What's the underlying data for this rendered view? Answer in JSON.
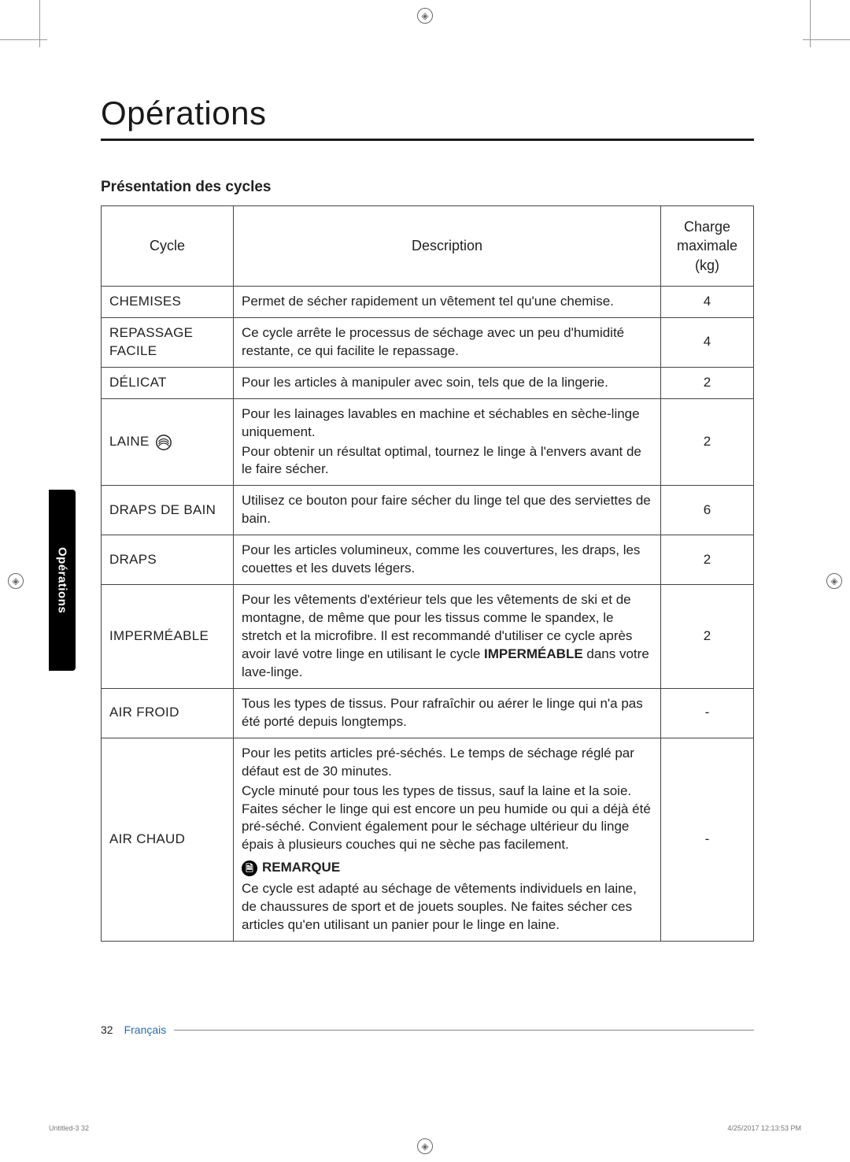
{
  "page": {
    "title": "Opérations",
    "subtitle": "Présentation des cycles",
    "side_tab": "Opérations",
    "page_number": "32",
    "language": "Français",
    "print_file": "Untitled-3   32",
    "print_timestamp": "4/25/2017   12:13:53 PM"
  },
  "table": {
    "headers": {
      "cycle": "Cycle",
      "description": "Description",
      "charge": "Charge maximale (kg)"
    },
    "rows": [
      {
        "cycle": "CHEMISES",
        "desc_paras": [
          "Permet de sécher rapidement un vêtement tel qu'une chemise."
        ],
        "charge": "4",
        "has_wool_icon": false
      },
      {
        "cycle": "REPASSAGE FACILE",
        "desc_paras": [
          "Ce cycle arrête le processus de séchage avec un peu d'humidité restante, ce qui facilite le repassage."
        ],
        "charge": "4",
        "has_wool_icon": false
      },
      {
        "cycle": "DÉLICAT",
        "desc_paras": [
          "Pour les articles à manipuler avec soin, tels que de la lingerie."
        ],
        "charge": "2",
        "has_wool_icon": false
      },
      {
        "cycle": "LAINE",
        "desc_paras": [
          "Pour les lainages lavables en machine et séchables en sèche-linge uniquement.",
          "Pour obtenir un résultat optimal, tournez le linge à l'envers avant de le faire sécher."
        ],
        "charge": "2",
        "has_wool_icon": true
      },
      {
        "cycle": "DRAPS DE BAIN",
        "desc_paras": [
          "Utilisez ce bouton pour faire sécher du linge tel que des serviettes de bain."
        ],
        "charge": "6",
        "has_wool_icon": false
      },
      {
        "cycle": "DRAPS",
        "desc_paras": [
          "Pour les articles volumineux, comme les couvertures, les draps, les couettes et les duvets légers."
        ],
        "charge": "2",
        "has_wool_icon": false
      },
      {
        "cycle": "IMPERMÉABLE",
        "desc_paras": [
          "Pour les vêtements d'extérieur tels que les vêtements de ski et de montagne, de même que pour les tissus comme le spandex, le stretch et la microfibre. Il est recommandé d'utiliser ce cycle après avoir lavé votre linge en utilisant le cycle <strong class=\"cycle-bold\">IMPERMÉABLE</strong> dans votre lave-linge."
        ],
        "charge": "2",
        "has_wool_icon": false,
        "desc_has_html": true
      },
      {
        "cycle": "AIR FROID",
        "desc_paras": [
          "Tous les types de tissus. Pour rafraîchir ou aérer le linge qui n'a pas été porté depuis longtemps."
        ],
        "charge": "-",
        "has_wool_icon": false
      },
      {
        "cycle": "AIR CHAUD",
        "desc_paras": [
          "Pour les petits articles pré-séchés. Le temps de séchage réglé par défaut est de 30 minutes.",
          "Cycle minuté pour tous les types de tissus, sauf la laine et la soie. Faites sécher le linge qui est encore un peu humide ou qui a déjà été pré-séché. Convient également pour le séchage ultérieur du linge épais à plusieurs couches qui ne sèche pas facilement."
        ],
        "remarque_label": "REMARQUE",
        "remarque_paras": [
          "Ce cycle est adapté au séchage de vêtements individuels en laine, de chaussures de sport et de jouets souples. Ne faites sécher ces articles qu'en utilisant un panier pour le linge en laine."
        ],
        "charge": "-",
        "has_wool_icon": false
      }
    ]
  },
  "colors": {
    "text": "#222222",
    "border": "#444444",
    "link": "#2a6bb0",
    "tab_bg": "#000000",
    "tab_text": "#ffffff",
    "background": "#ffffff"
  }
}
